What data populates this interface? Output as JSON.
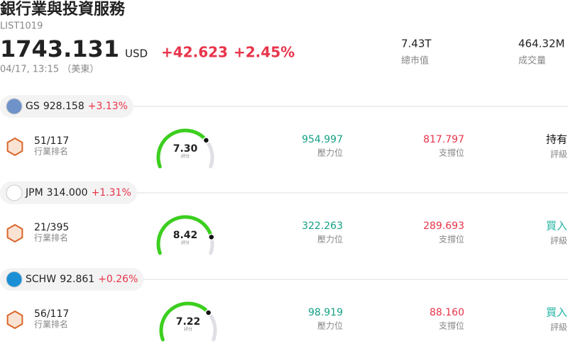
{
  "header": {
    "title": "銀行業與投資服務",
    "code": "LIST1019",
    "price": "1743.131",
    "currency": "USD",
    "change": "+42.623",
    "change_pct": "+2.45%",
    "time": "04/17, 13:15 （美東）",
    "stats": [
      {
        "value": "7.43T",
        "label": "總市值"
      },
      {
        "value": "464.32M",
        "label": "成交量"
      }
    ]
  },
  "score_lim": [
    0,
    10
  ],
  "stocks": [
    {
      "ticker": "GS",
      "price": "928.158",
      "change": "+3.13%",
      "rank": "51/117",
      "rank_label": "行業排名",
      "score": {
        "value": 7.3,
        "label": "7.30"
      },
      "score_label": "評分",
      "resistance": "954.997",
      "resistance_label": "壓力位",
      "support": "817.797",
      "support_label": "支撐位",
      "rating": "持有",
      "rating_color": "#111111",
      "rating_label": "評級"
    },
    {
      "ticker": "JPM",
      "price": "314.000",
      "change": "+1.31%",
      "rank": "21/395",
      "rank_label": "行業排名",
      "score": {
        "value": 8.42,
        "label": "8.42"
      },
      "score_label": "評分",
      "resistance": "322.263",
      "resistance_label": "壓力位",
      "support": "289.693",
      "support_label": "支撐位",
      "rating": "買入",
      "rating_color": "#1fb3a3",
      "rating_label": "評級"
    },
    {
      "ticker": "SCHW",
      "price": "92.861",
      "change": "+0.26%",
      "rank": "56/117",
      "rank_label": "行業排名",
      "score": {
        "value": 7.22,
        "label": "7.22"
      },
      "score_label": "評分",
      "resistance": "98.919",
      "resistance_label": "壓力位",
      "support": "88.160",
      "support_label": "支撐位",
      "rating": "買入",
      "rating_color": "#1fb3a3",
      "rating_label": "評級"
    }
  ]
}
